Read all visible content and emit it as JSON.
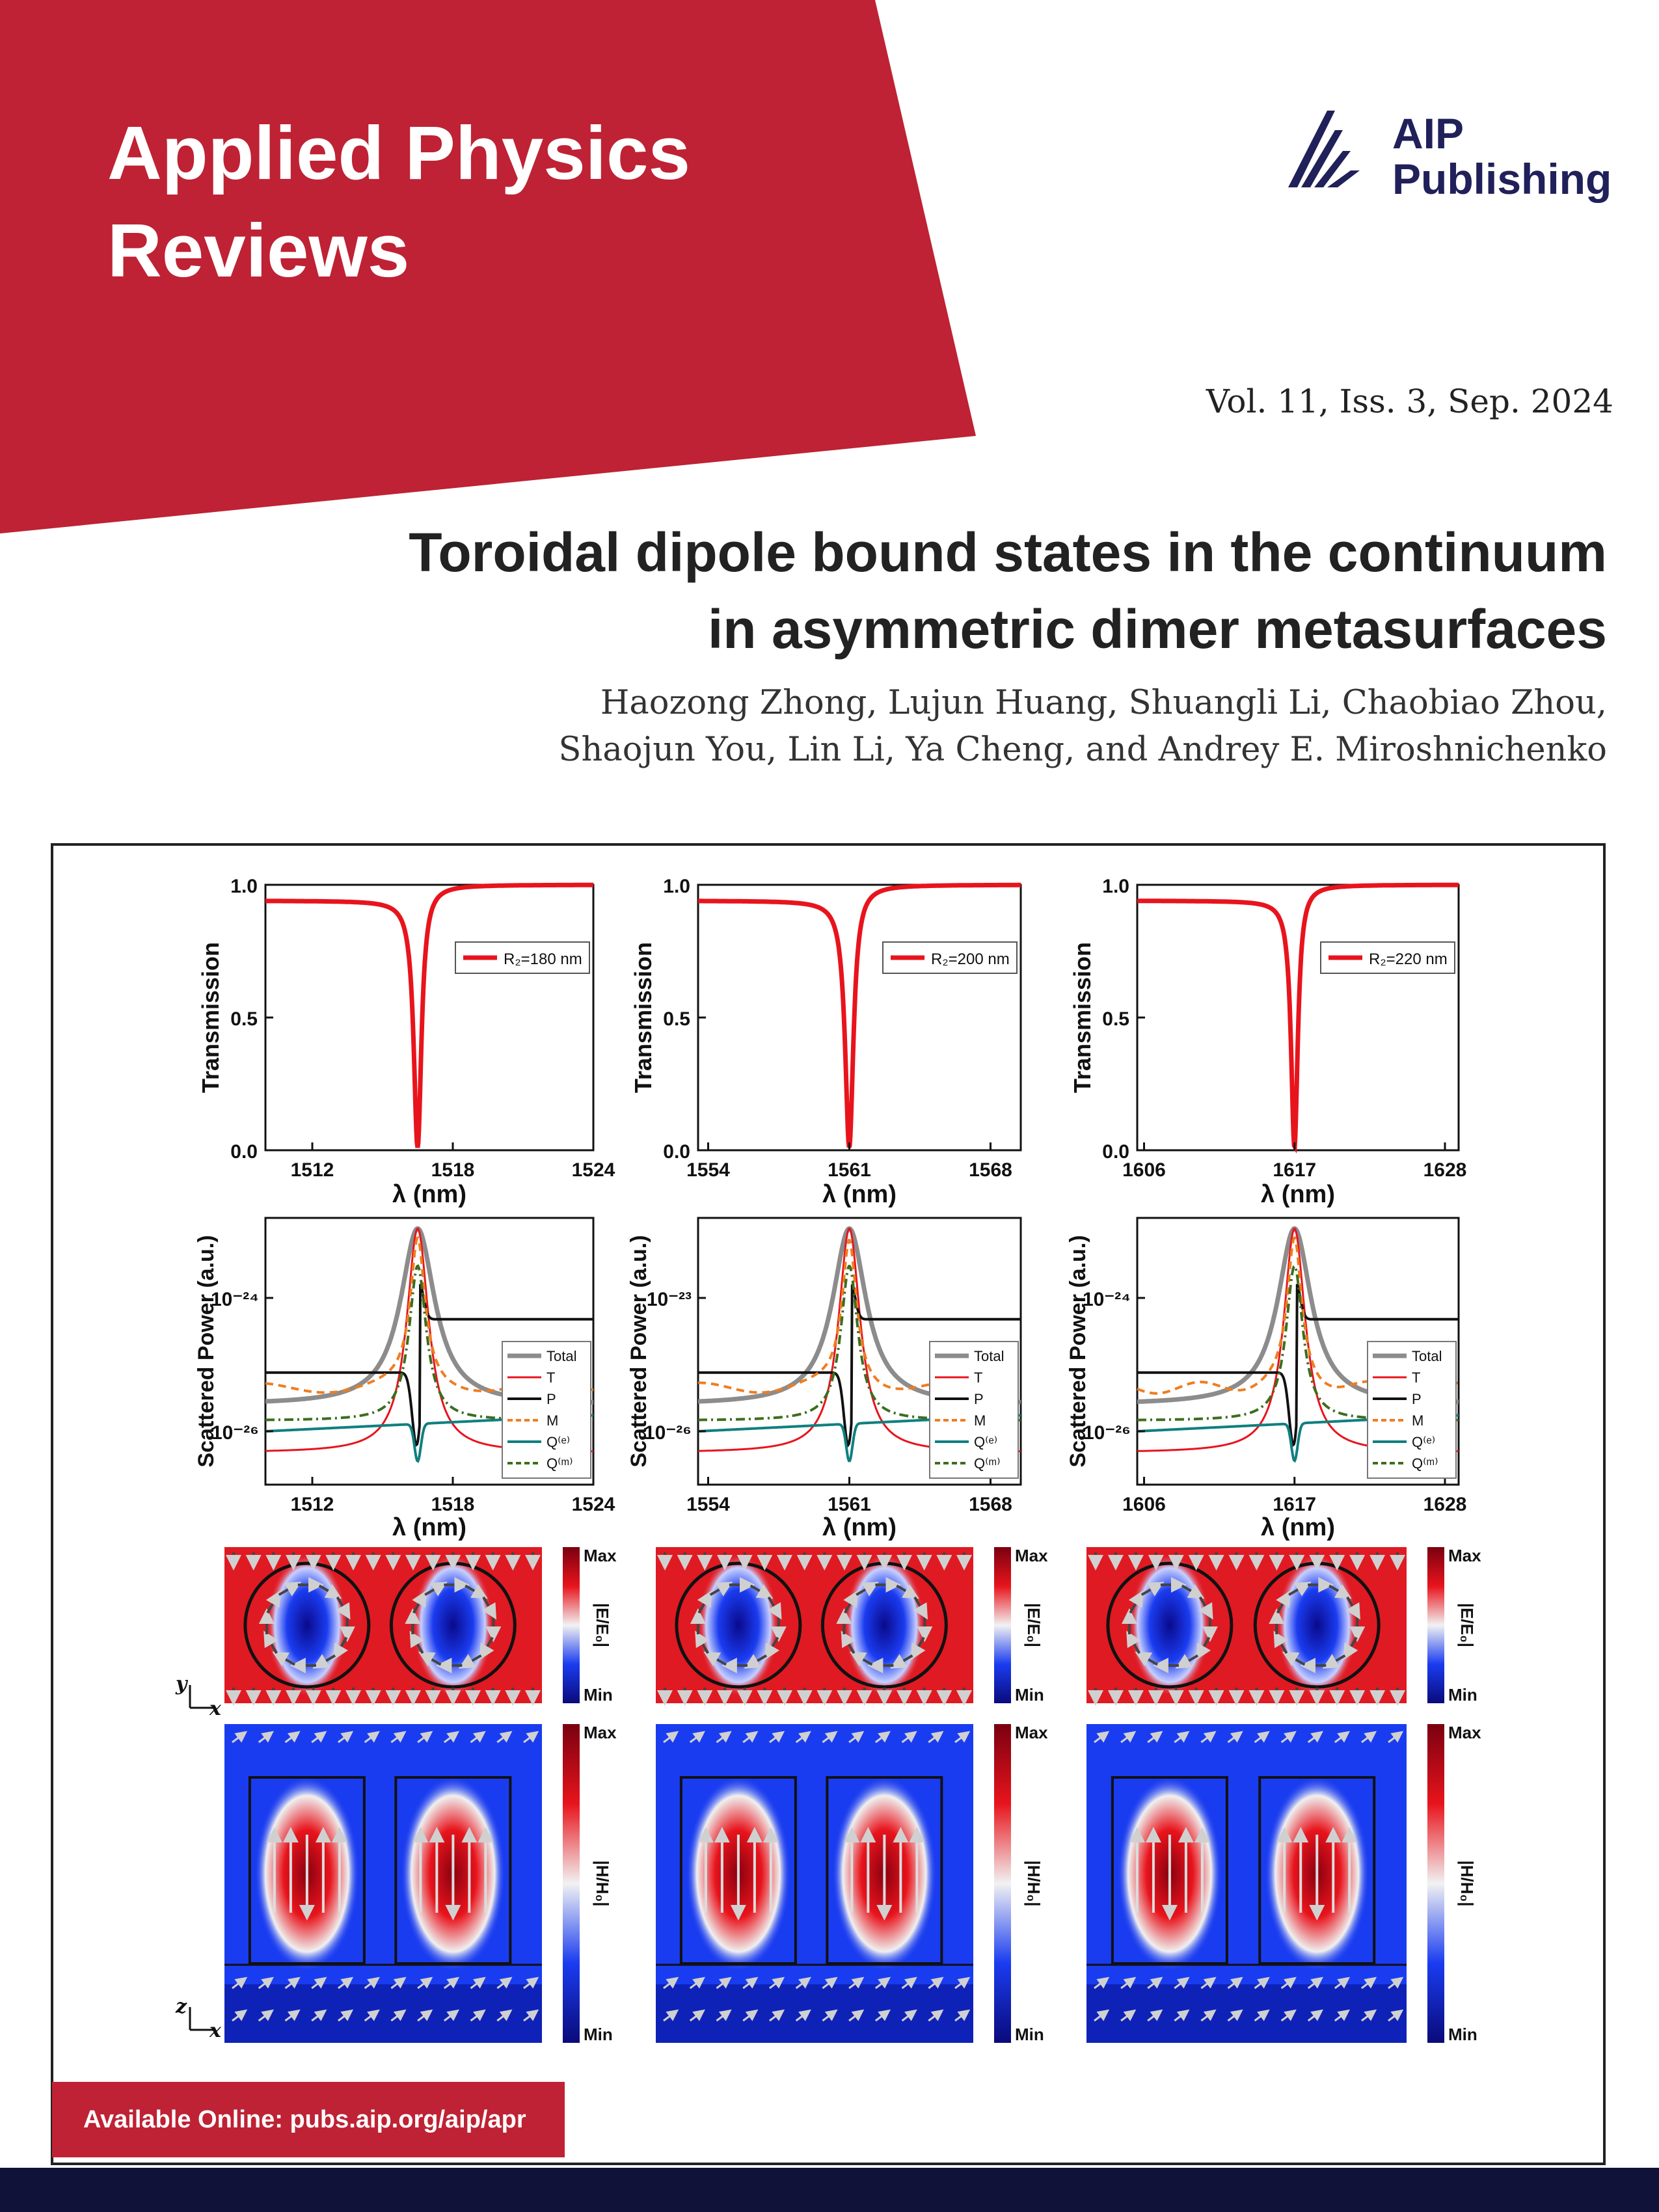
{
  "journal": {
    "title": "Applied Physics\nReviews",
    "brand_color": "#be2234"
  },
  "publisher": {
    "name": "AIP\nPublishing",
    "icon": "aip-fan-logo-icon",
    "color": "#20205a"
  },
  "issue": "Vol. 11, Iss. 3, Sep. 2024",
  "article": {
    "title": "Toroidal dipole bound states in the continuum\nin asymmetric dimer metasurfaces",
    "authors": "Haozong Zhong, Lujun Huang, Shuangli Li, Chaobiao Zhou,\nShaojun You, Lin Li, Ya Cheng, and Andrey E. Miroshnichenko"
  },
  "footer": {
    "online": "Available Online: pubs.aip.org/aip/apr",
    "color": "#10123a"
  },
  "chart_data": [
    {
      "type": "line",
      "ylabel": "Transmission",
      "xlabel": "λ (nm)",
      "xlim": [
        1510,
        1524
      ],
      "ylim": [
        0,
        1
      ],
      "xticks": [
        "1512",
        "1518",
        "1524"
      ],
      "yticks": [
        "0.0",
        "0.5",
        "1.0"
      ],
      "series": [
        {
          "name": "R₂=180 nm",
          "color": "#e8141c",
          "resonance": 1516.5,
          "width": 0.2
        }
      ]
    },
    {
      "type": "line",
      "ylabel": "Transmission",
      "xlabel": "λ (nm)",
      "xlim": [
        1553.5,
        1569.5
      ],
      "ylim": [
        0,
        1
      ],
      "xticks": [
        "1554",
        "1561",
        "1568"
      ],
      "yticks": [
        "0.0",
        "0.5",
        "1.0"
      ],
      "series": [
        {
          "name": "R₂=200 nm",
          "color": "#e8141c",
          "resonance": 1561,
          "width": 0.25
        }
      ]
    },
    {
      "type": "line",
      "ylabel": "Transmission",
      "xlabel": "λ (nm)",
      "xlim": [
        1605.5,
        1629
      ],
      "ylim": [
        0,
        1
      ],
      "xticks": [
        "1606",
        "1617",
        "1628"
      ],
      "yticks": [
        "0.0",
        "0.5",
        "1.0"
      ],
      "series": [
        {
          "name": "R₂=220 nm",
          "color": "#e8141c",
          "resonance": 1617,
          "width": 0.3
        }
      ]
    },
    {
      "type": "line",
      "scale": "log",
      "ylabel": "Scattered Power (a.u.)",
      "xlabel": "λ (nm)",
      "xlim": [
        1510,
        1524
      ],
      "yticks": [
        "10⁻²⁴",
        "10⁻²⁶"
      ],
      "xticks": [
        "1512",
        "1518",
        "1524"
      ],
      "series": [
        {
          "name": "Total",
          "color": "#8c8c8c"
        },
        {
          "name": "T",
          "color": "#e8141c"
        },
        {
          "name": "P",
          "color": "#111111"
        },
        {
          "name": "M",
          "color": "#ef7d1f"
        },
        {
          "name": "Q⁽ᵉ⁾",
          "color": "#0f7f7f"
        },
        {
          "name": "Q⁽ᵐ⁾",
          "color": "#3c6e1e"
        }
      ]
    },
    {
      "type": "line",
      "scale": "log",
      "ylabel": "Scattered Power (a.u.)",
      "xlabel": "λ (nm)",
      "xlim": [
        1553.5,
        1569.5
      ],
      "yticks": [
        "10⁻²³",
        "10⁻²⁶"
      ],
      "xticks": [
        "1554",
        "1561",
        "1568"
      ],
      "series": [
        {
          "name": "Total",
          "color": "#8c8c8c"
        },
        {
          "name": "T",
          "color": "#e8141c"
        },
        {
          "name": "P",
          "color": "#111111"
        },
        {
          "name": "M",
          "color": "#ef7d1f"
        },
        {
          "name": "Q⁽ᵉ⁾",
          "color": "#0f7f7f"
        },
        {
          "name": "Q⁽ᵐ⁾",
          "color": "#3c6e1e"
        }
      ]
    },
    {
      "type": "line",
      "scale": "log",
      "ylabel": "Scattered Power (a.u.)",
      "xlabel": "λ (nm)",
      "xlim": [
        1605.5,
        1629
      ],
      "yticks": [
        "10⁻²⁴",
        "10⁻²⁶"
      ],
      "xticks": [
        "1606",
        "1617",
        "1628"
      ],
      "series": [
        {
          "name": "Total",
          "color": "#8c8c8c"
        },
        {
          "name": "T",
          "color": "#e8141c"
        },
        {
          "name": "P",
          "color": "#111111"
        },
        {
          "name": "M",
          "color": "#ef7d1f"
        },
        {
          "name": "Q⁽ᵉ⁾",
          "color": "#0f7f7f"
        },
        {
          "name": "Q⁽ᵐ⁾",
          "color": "#3c6e1e"
        }
      ]
    },
    {
      "type": "heatmap",
      "colorbar": {
        "label": "|E/E₀|",
        "max": "Max",
        "min": "Min"
      },
      "axes": [
        "y",
        "x"
      ],
      "count": 3
    },
    {
      "type": "heatmap",
      "colorbar": {
        "label": "|H/H₀|",
        "max": "Max",
        "min": "Min"
      },
      "axes": [
        "z",
        "x"
      ],
      "count": 3
    }
  ]
}
